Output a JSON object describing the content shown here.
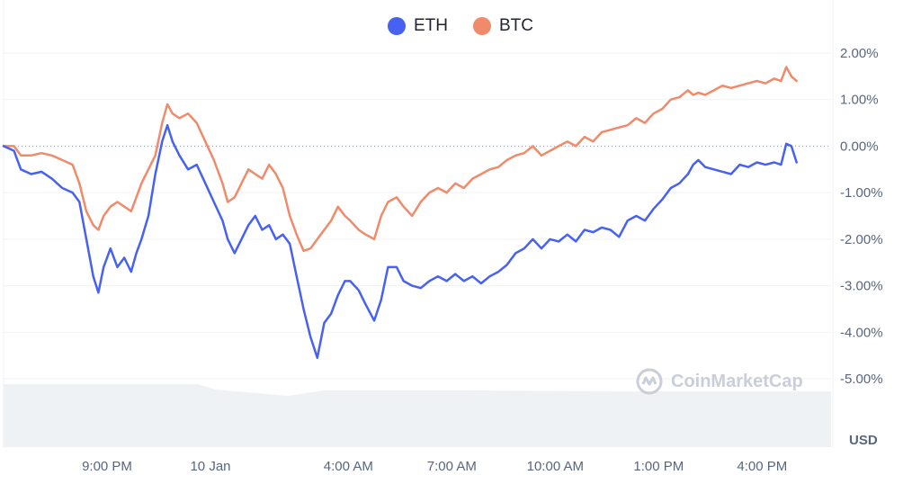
{
  "legend": {
    "eth_label": "ETH",
    "btc_label": "BTC",
    "eth_color": "#4761f2",
    "btc_color": "#ef8b6b"
  },
  "watermark": {
    "text": "CoinMarketCap",
    "icon": "coinmarketcap-logo-icon"
  },
  "currency_label": "USD",
  "chart_data": {
    "type": "line",
    "title": "",
    "xlabel": "",
    "ylabel": "",
    "x_tick_labels": [
      "9:00 PM",
      "10 Jan",
      "4:00 AM",
      "7:00 AM",
      "10:00 AM",
      "1:00 PM",
      "4:00 PM"
    ],
    "x_tick_hours": [
      3,
      6,
      10,
      13,
      16,
      19,
      22
    ],
    "x_range_hours": [
      0,
      24
    ],
    "y_tick_labels": [
      "2.00%",
      "1.00%",
      "0.00%",
      "-1.00%",
      "-2.00%",
      "-3.00%",
      "-4.00%",
      "-5.00%"
    ],
    "ylim": [
      -5,
      2
    ],
    "y_unit": "%",
    "grid": true,
    "baseline": 0,
    "series": [
      {
        "name": "ETH",
        "color": "#4761f2",
        "points": [
          [
            0,
            0
          ],
          [
            0.3,
            -0.1
          ],
          [
            0.5,
            -0.5
          ],
          [
            0.8,
            -0.6
          ],
          [
            1.1,
            -0.55
          ],
          [
            1.4,
            -0.7
          ],
          [
            1.7,
            -0.9
          ],
          [
            2.0,
            -1.0
          ],
          [
            2.2,
            -1.2
          ],
          [
            2.4,
            -2.0
          ],
          [
            2.6,
            -2.8
          ],
          [
            2.75,
            -3.15
          ],
          [
            2.9,
            -2.6
          ],
          [
            3.1,
            -2.2
          ],
          [
            3.3,
            -2.6
          ],
          [
            3.5,
            -2.4
          ],
          [
            3.7,
            -2.7
          ],
          [
            3.85,
            -2.3
          ],
          [
            4.0,
            -2.0
          ],
          [
            4.2,
            -1.5
          ],
          [
            4.4,
            -0.6
          ],
          [
            4.6,
            0.1
          ],
          [
            4.75,
            0.45
          ],
          [
            4.9,
            0.1
          ],
          [
            5.1,
            -0.2
          ],
          [
            5.35,
            -0.5
          ],
          [
            5.6,
            -0.4
          ],
          [
            5.85,
            -0.8
          ],
          [
            6.1,
            -1.2
          ],
          [
            6.35,
            -1.6
          ],
          [
            6.5,
            -2.0
          ],
          [
            6.7,
            -2.3
          ],
          [
            6.9,
            -2.0
          ],
          [
            7.1,
            -1.7
          ],
          [
            7.3,
            -1.5
          ],
          [
            7.5,
            -1.8
          ],
          [
            7.7,
            -1.7
          ],
          [
            7.9,
            -2.0
          ],
          [
            8.1,
            -1.9
          ],
          [
            8.3,
            -2.1
          ],
          [
            8.5,
            -2.8
          ],
          [
            8.7,
            -3.5
          ],
          [
            8.9,
            -4.1
          ],
          [
            9.1,
            -4.55
          ],
          [
            9.3,
            -3.8
          ],
          [
            9.5,
            -3.6
          ],
          [
            9.7,
            -3.2
          ],
          [
            9.9,
            -2.9
          ],
          [
            10.05,
            -2.9
          ],
          [
            10.3,
            -3.1
          ],
          [
            10.5,
            -3.4
          ],
          [
            10.75,
            -3.75
          ],
          [
            10.95,
            -3.3
          ],
          [
            11.15,
            -2.6
          ],
          [
            11.4,
            -2.6
          ],
          [
            11.6,
            -2.9
          ],
          [
            11.85,
            -3.0
          ],
          [
            12.1,
            -3.05
          ],
          [
            12.35,
            -2.9
          ],
          [
            12.6,
            -2.8
          ],
          [
            12.85,
            -2.9
          ],
          [
            13.1,
            -2.75
          ],
          [
            13.35,
            -2.9
          ],
          [
            13.6,
            -2.8
          ],
          [
            13.85,
            -2.95
          ],
          [
            14.1,
            -2.8
          ],
          [
            14.35,
            -2.7
          ],
          [
            14.6,
            -2.55
          ],
          [
            14.85,
            -2.3
          ],
          [
            15.1,
            -2.2
          ],
          [
            15.35,
            -2.0
          ],
          [
            15.6,
            -2.2
          ],
          [
            15.85,
            -2.0
          ],
          [
            16.1,
            -2.05
          ],
          [
            16.35,
            -1.9
          ],
          [
            16.6,
            -2.05
          ],
          [
            16.85,
            -1.8
          ],
          [
            17.1,
            -1.85
          ],
          [
            17.35,
            -1.75
          ],
          [
            17.6,
            -1.8
          ],
          [
            17.85,
            -1.95
          ],
          [
            18.1,
            -1.6
          ],
          [
            18.35,
            -1.5
          ],
          [
            18.6,
            -1.6
          ],
          [
            18.85,
            -1.35
          ],
          [
            19.1,
            -1.15
          ],
          [
            19.35,
            -0.9
          ],
          [
            19.6,
            -0.8
          ],
          [
            19.85,
            -0.6
          ],
          [
            20.0,
            -0.4
          ],
          [
            20.15,
            -0.3
          ],
          [
            20.35,
            -0.45
          ],
          [
            20.6,
            -0.5
          ],
          [
            20.85,
            -0.55
          ],
          [
            21.1,
            -0.6
          ],
          [
            21.35,
            -0.4
          ],
          [
            21.6,
            -0.45
          ],
          [
            21.85,
            -0.35
          ],
          [
            22.1,
            -0.4
          ],
          [
            22.35,
            -0.35
          ],
          [
            22.55,
            -0.4
          ],
          [
            22.7,
            0.05
          ],
          [
            22.85,
            0.0
          ],
          [
            23.0,
            -0.35
          ]
        ]
      },
      {
        "name": "BTC",
        "color": "#ef8b6b",
        "points": [
          [
            0,
            0
          ],
          [
            0.3,
            0.0
          ],
          [
            0.5,
            -0.2
          ],
          [
            0.8,
            -0.2
          ],
          [
            1.1,
            -0.15
          ],
          [
            1.4,
            -0.2
          ],
          [
            1.7,
            -0.3
          ],
          [
            2.0,
            -0.4
          ],
          [
            2.2,
            -0.8
          ],
          [
            2.4,
            -1.4
          ],
          [
            2.6,
            -1.7
          ],
          [
            2.75,
            -1.8
          ],
          [
            2.9,
            -1.5
          ],
          [
            3.1,
            -1.3
          ],
          [
            3.3,
            -1.2
          ],
          [
            3.5,
            -1.3
          ],
          [
            3.7,
            -1.4
          ],
          [
            3.85,
            -1.1
          ],
          [
            4.0,
            -0.8
          ],
          [
            4.2,
            -0.5
          ],
          [
            4.4,
            -0.2
          ],
          [
            4.6,
            0.5
          ],
          [
            4.75,
            0.9
          ],
          [
            4.9,
            0.7
          ],
          [
            5.1,
            0.6
          ],
          [
            5.35,
            0.7
          ],
          [
            5.6,
            0.5
          ],
          [
            5.85,
            0.1
          ],
          [
            6.1,
            -0.3
          ],
          [
            6.35,
            -0.8
          ],
          [
            6.5,
            -1.2
          ],
          [
            6.7,
            -1.1
          ],
          [
            6.9,
            -0.8
          ],
          [
            7.1,
            -0.5
          ],
          [
            7.3,
            -0.6
          ],
          [
            7.5,
            -0.7
          ],
          [
            7.7,
            -0.4
          ],
          [
            7.9,
            -0.6
          ],
          [
            8.1,
            -0.9
          ],
          [
            8.3,
            -1.5
          ],
          [
            8.5,
            -1.9
          ],
          [
            8.7,
            -2.25
          ],
          [
            8.9,
            -2.2
          ],
          [
            9.1,
            -2.0
          ],
          [
            9.3,
            -1.8
          ],
          [
            9.5,
            -1.6
          ],
          [
            9.7,
            -1.3
          ],
          [
            9.9,
            -1.5
          ],
          [
            10.05,
            -1.6
          ],
          [
            10.3,
            -1.8
          ],
          [
            10.5,
            -1.9
          ],
          [
            10.75,
            -2.0
          ],
          [
            10.95,
            -1.5
          ],
          [
            11.15,
            -1.2
          ],
          [
            11.4,
            -1.1
          ],
          [
            11.6,
            -1.3
          ],
          [
            11.85,
            -1.5
          ],
          [
            12.1,
            -1.2
          ],
          [
            12.35,
            -1.0
          ],
          [
            12.6,
            -0.9
          ],
          [
            12.85,
            -1.0
          ],
          [
            13.1,
            -0.8
          ],
          [
            13.35,
            -0.9
          ],
          [
            13.6,
            -0.7
          ],
          [
            13.85,
            -0.6
          ],
          [
            14.1,
            -0.5
          ],
          [
            14.35,
            -0.45
          ],
          [
            14.6,
            -0.3
          ],
          [
            14.85,
            -0.2
          ],
          [
            15.1,
            -0.15
          ],
          [
            15.35,
            0.0
          ],
          [
            15.6,
            -0.2
          ],
          [
            15.85,
            -0.1
          ],
          [
            16.1,
            0.0
          ],
          [
            16.35,
            0.1
          ],
          [
            16.6,
            0.0
          ],
          [
            16.85,
            0.2
          ],
          [
            17.1,
            0.1
          ],
          [
            17.35,
            0.3
          ],
          [
            17.6,
            0.35
          ],
          [
            17.85,
            0.4
          ],
          [
            18.1,
            0.45
          ],
          [
            18.35,
            0.6
          ],
          [
            18.6,
            0.5
          ],
          [
            18.85,
            0.7
          ],
          [
            19.1,
            0.8
          ],
          [
            19.35,
            1.0
          ],
          [
            19.6,
            1.05
          ],
          [
            19.85,
            1.2
          ],
          [
            20.0,
            1.1
          ],
          [
            20.15,
            1.15
          ],
          [
            20.35,
            1.1
          ],
          [
            20.6,
            1.2
          ],
          [
            20.85,
            1.3
          ],
          [
            21.1,
            1.25
          ],
          [
            21.35,
            1.3
          ],
          [
            21.6,
            1.35
          ],
          [
            21.85,
            1.4
          ],
          [
            22.1,
            1.35
          ],
          [
            22.35,
            1.45
          ],
          [
            22.55,
            1.4
          ],
          [
            22.7,
            1.7
          ],
          [
            22.85,
            1.5
          ],
          [
            23.0,
            1.4
          ]
        ]
      }
    ],
    "volume_band": true
  }
}
